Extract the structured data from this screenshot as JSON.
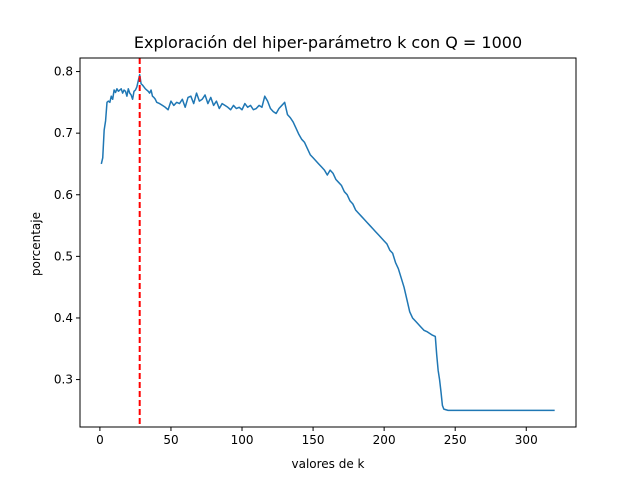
{
  "chart_data": {
    "type": "line",
    "title": "Exploración del hiper-parámetro k con Q = 1000",
    "xlabel": "valores de k",
    "ylabel": "porcentaje",
    "xlim": [
      -14,
      335
    ],
    "ylim": [
      0.223,
      0.822
    ],
    "x_ticks": [
      0,
      50,
      100,
      150,
      200,
      250,
      300
    ],
    "x_tick_labels": [
      "0",
      "50",
      "100",
      "150",
      "200",
      "250",
      "300"
    ],
    "y_ticks": [
      0.3,
      0.4,
      0.5,
      0.6,
      0.7,
      0.8
    ],
    "y_tick_labels": [
      "0.3",
      "0.4",
      "0.5",
      "0.6",
      "0.7",
      "0.8"
    ],
    "grid": false,
    "colors": {
      "series": "#1f77b4",
      "marker_line": "#ff0000"
    },
    "vline": {
      "x": 28,
      "style": "dashed"
    },
    "series": [
      {
        "x": [
          1,
          2,
          3,
          4,
          5,
          6,
          7,
          8,
          9,
          10,
          11,
          12,
          13,
          14,
          15,
          16,
          17,
          18,
          19,
          20,
          21,
          22,
          23,
          24,
          25,
          26,
          27,
          28,
          29,
          30,
          31,
          32,
          33,
          34,
          35,
          36,
          37,
          38,
          39,
          40,
          42,
          44,
          46,
          48,
          50,
          52,
          54,
          56,
          58,
          60,
          62,
          64,
          66,
          68,
          70,
          72,
          74,
          76,
          78,
          80,
          82,
          84,
          86,
          88,
          90,
          92,
          94,
          96,
          98,
          100,
          102,
          104,
          106,
          108,
          110,
          112,
          114,
          116,
          118,
          120,
          122,
          124,
          126,
          128,
          130,
          132,
          134,
          136,
          138,
          140,
          142,
          144,
          146,
          148,
          150,
          152,
          154,
          156,
          158,
          160,
          162,
          164,
          166,
          168,
          170,
          172,
          174,
          176,
          178,
          180,
          182,
          184,
          186,
          188,
          190,
          192,
          194,
          196,
          198,
          200,
          202,
          204,
          206,
          208,
          210,
          212,
          214,
          216,
          218,
          220,
          222,
          224,
          226,
          228,
          230,
          232,
          234,
          236,
          237,
          238,
          239,
          240,
          241,
          242,
          245,
          250,
          260,
          270,
          280,
          290,
          300,
          310,
          320
        ],
        "y": [
          0.65,
          0.66,
          0.705,
          0.72,
          0.75,
          0.752,
          0.75,
          0.76,
          0.755,
          0.77,
          0.766,
          0.772,
          0.768,
          0.77,
          0.772,
          0.765,
          0.77,
          0.768,
          0.76,
          0.772,
          0.765,
          0.762,
          0.755,
          0.768,
          0.77,
          0.775,
          0.785,
          0.795,
          0.78,
          0.778,
          0.775,
          0.772,
          0.77,
          0.768,
          0.765,
          0.77,
          0.76,
          0.758,
          0.755,
          0.75,
          0.748,
          0.745,
          0.742,
          0.738,
          0.752,
          0.745,
          0.75,
          0.748,
          0.755,
          0.742,
          0.758,
          0.76,
          0.748,
          0.765,
          0.752,
          0.755,
          0.762,
          0.748,
          0.758,
          0.745,
          0.752,
          0.74,
          0.748,
          0.745,
          0.742,
          0.738,
          0.745,
          0.74,
          0.742,
          0.738,
          0.748,
          0.742,
          0.745,
          0.738,
          0.74,
          0.745,
          0.742,
          0.76,
          0.752,
          0.74,
          0.735,
          0.732,
          0.74,
          0.745,
          0.75,
          0.73,
          0.725,
          0.718,
          0.708,
          0.698,
          0.69,
          0.685,
          0.675,
          0.665,
          0.66,
          0.655,
          0.65,
          0.645,
          0.64,
          0.632,
          0.64,
          0.635,
          0.625,
          0.62,
          0.615,
          0.605,
          0.6,
          0.59,
          0.585,
          0.575,
          0.57,
          0.565,
          0.56,
          0.555,
          0.55,
          0.545,
          0.54,
          0.535,
          0.53,
          0.525,
          0.52,
          0.51,
          0.505,
          0.49,
          0.48,
          0.465,
          0.45,
          0.43,
          0.41,
          0.4,
          0.395,
          0.39,
          0.385,
          0.38,
          0.378,
          0.375,
          0.372,
          0.37,
          0.34,
          0.315,
          0.3,
          0.28,
          0.258,
          0.252,
          0.25,
          0.25,
          0.25,
          0.25,
          0.25,
          0.25,
          0.25,
          0.25,
          0.25
        ]
      }
    ]
  }
}
